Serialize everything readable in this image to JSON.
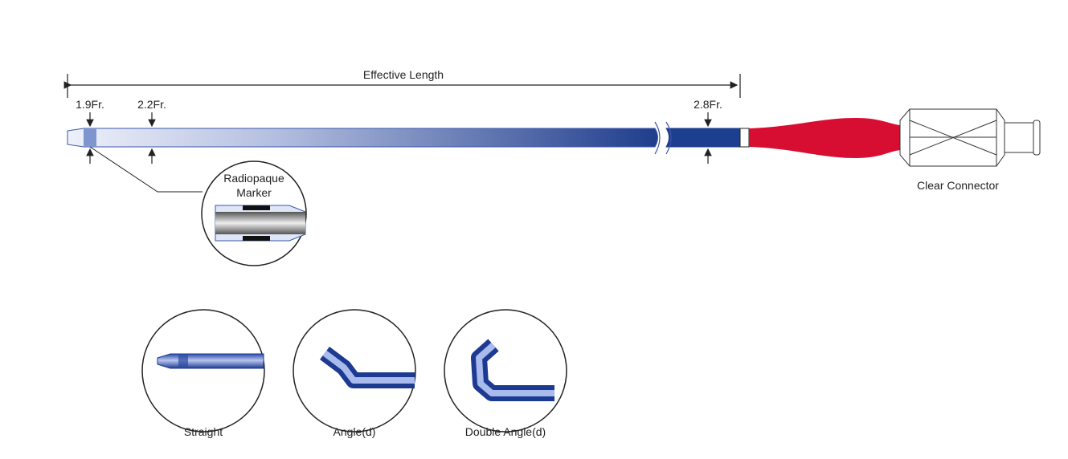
{
  "catheter": {
    "dimension_label": "Effective Length",
    "sizes": [
      "1.9Fr.",
      "2.2Fr.",
      "2.8Fr."
    ],
    "connector_label": "Clear Connector"
  },
  "marker_callout": {
    "lines": [
      "Radiopaque",
      "Marker"
    ]
  },
  "tip_shapes": [
    "Straight",
    "Angle(d)",
    "Double Angle(d)"
  ]
}
